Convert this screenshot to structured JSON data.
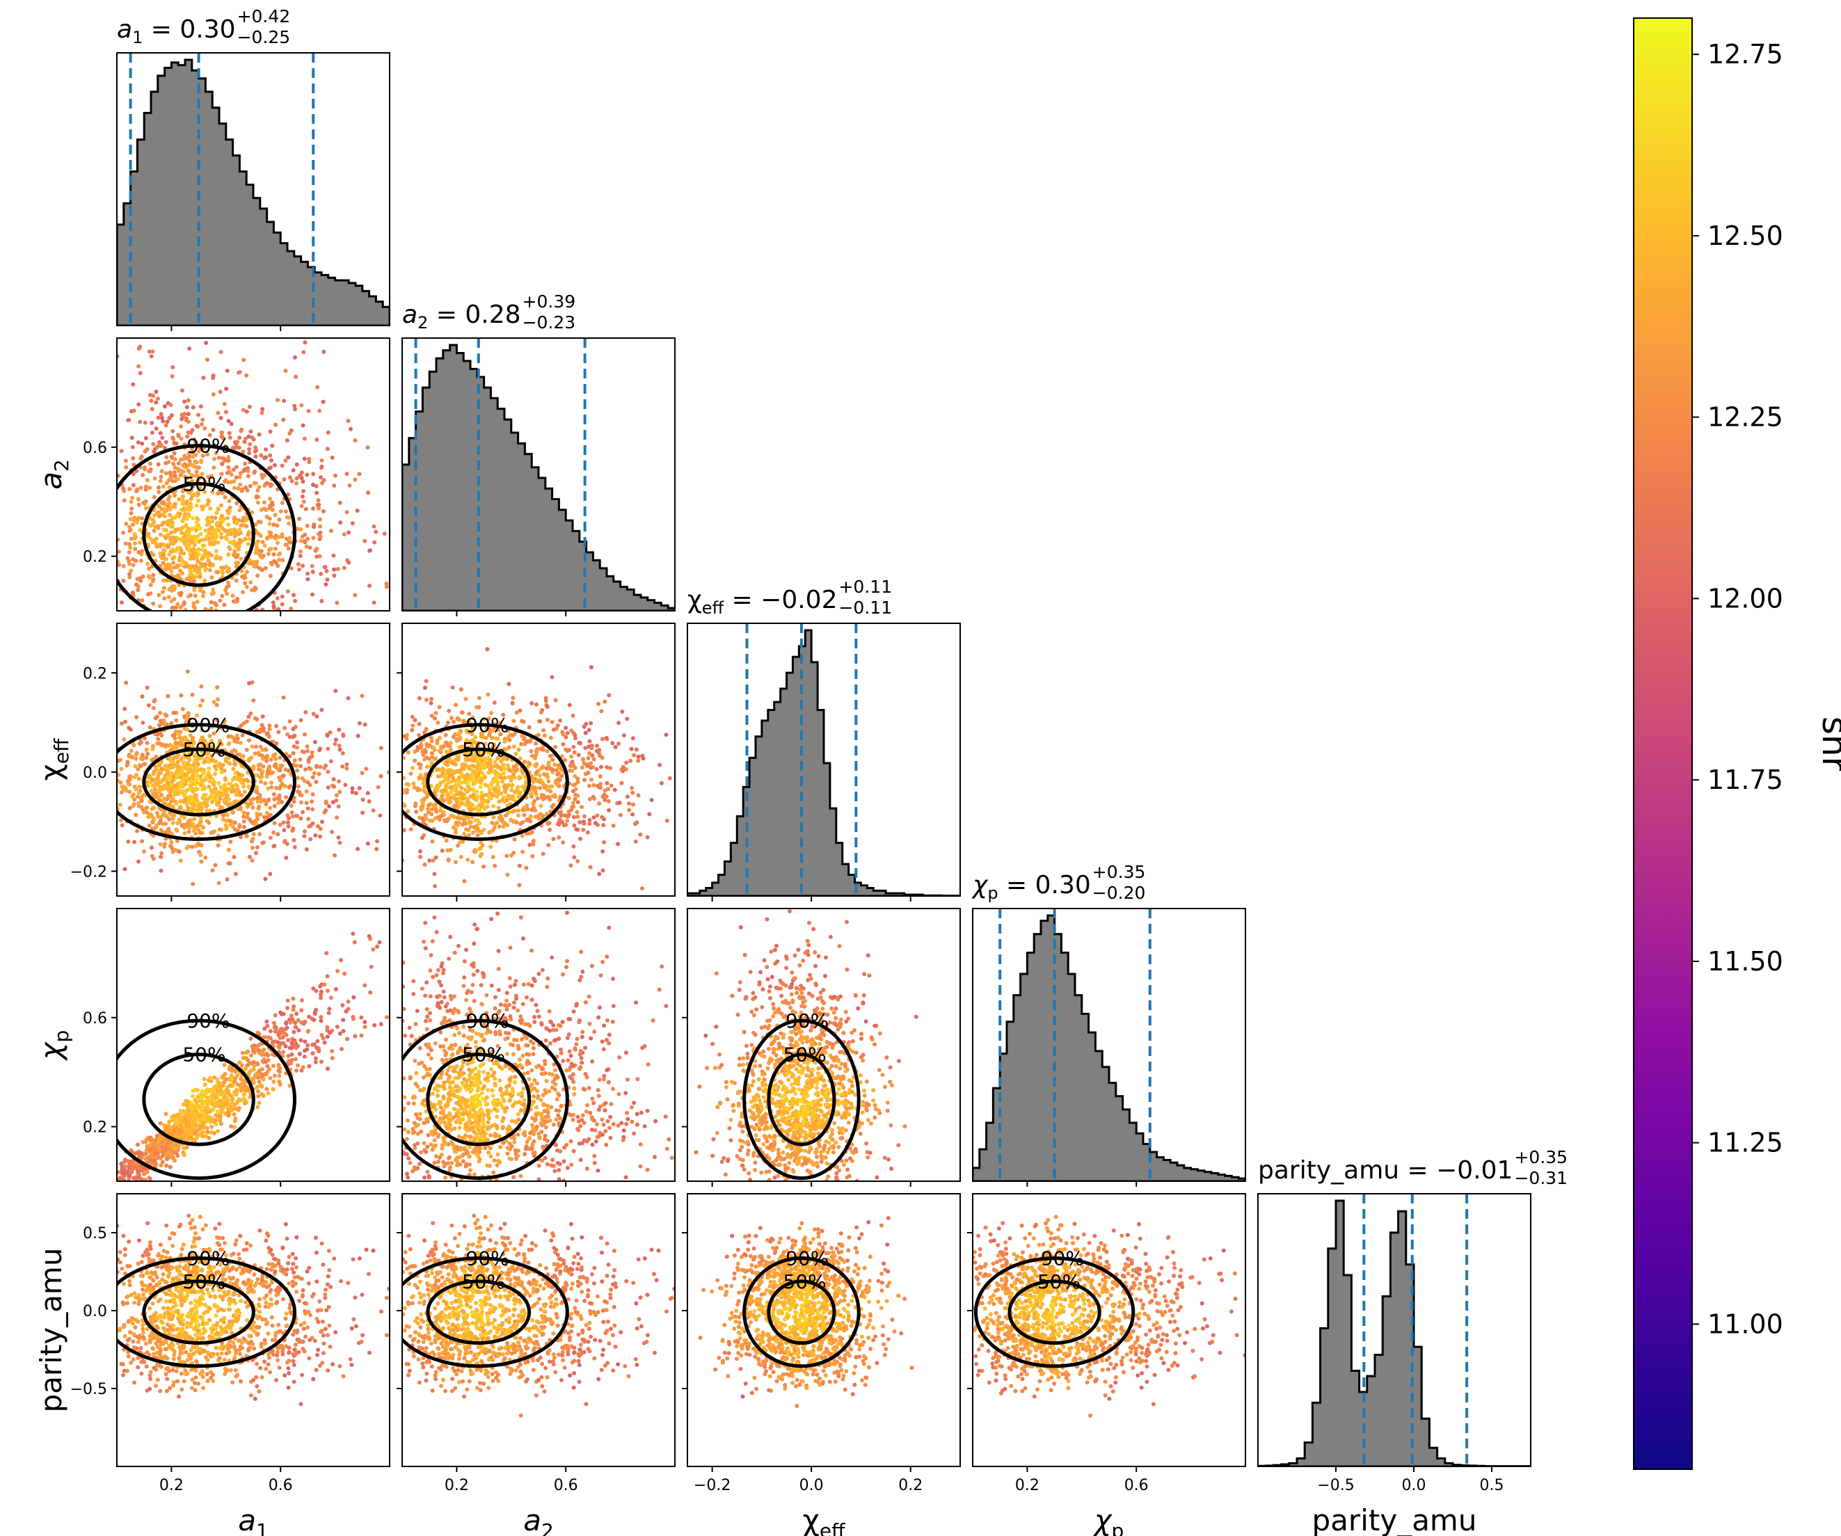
{
  "chart_data": {
    "type": "scatter",
    "kind": "corner plot",
    "parameters": [
      {
        "key": "a1",
        "label_base": "a",
        "label_sub": "1",
        "italic": true,
        "range": [
          0,
          1
        ],
        "ticks": [
          0.2,
          0.6
        ],
        "tick_labels": [
          "0.2",
          "0.6"
        ],
        "title": {
          "name": "a",
          "sub": "1",
          "value": "= 0.30",
          "plus": "+0.42",
          "minus": "−0.25"
        },
        "quantiles": [
          0.05,
          0.3,
          0.72
        ]
      },
      {
        "key": "a2",
        "label_base": "a",
        "label_sub": "2",
        "italic": true,
        "range": [
          0,
          1
        ],
        "ticks": [
          0.2,
          0.6
        ],
        "tick_labels": [
          "0.2",
          "0.6"
        ],
        "title": {
          "name": "a",
          "sub": "2",
          "value": "= 0.28",
          "plus": "+0.39",
          "minus": "−0.23"
        },
        "quantiles": [
          0.05,
          0.28,
          0.67
        ]
      },
      {
        "key": "chi_eff",
        "label_base": "χ",
        "label_sub": "eff",
        "italic": false,
        "range": [
          -0.25,
          0.3
        ],
        "ticks": [
          -0.2,
          0.0,
          0.2
        ],
        "tick_labels": [
          "−0.2",
          "0.0",
          "0.2"
        ],
        "title": {
          "name": "χ",
          "sub": "eff",
          "value": "= −0.02",
          "plus": "+0.11",
          "minus": "−0.11"
        },
        "quantiles": [
          -0.13,
          -0.02,
          0.09
        ]
      },
      {
        "key": "chi_p",
        "label_base": "χ",
        "label_sub": "p",
        "italic": true,
        "range": [
          0,
          1
        ],
        "ticks": [
          0.2,
          0.6
        ],
        "tick_labels": [
          "0.2",
          "0.6"
        ],
        "title": {
          "name": "χ",
          "sub": "p",
          "value": "= 0.30",
          "plus": "+0.35",
          "minus": "−0.20"
        },
        "quantiles": [
          0.1,
          0.3,
          0.65
        ]
      },
      {
        "key": "parity_amu",
        "label_base": "parity_amu",
        "label_sub": "",
        "italic": false,
        "range": [
          -1,
          0.75
        ],
        "ticks": [
          -0.5,
          0.0,
          0.5
        ],
        "tick_labels": [
          "−0.5",
          "0.0",
          "0.5"
        ],
        "title": {
          "name": "parity_amu",
          "sub": "",
          "value": "= −0.01",
          "plus": "+0.35",
          "minus": "−0.31"
        },
        "quantiles": [
          -0.32,
          -0.01,
          0.34
        ]
      }
    ],
    "histograms": [
      {
        "param": "a1",
        "bin_width": 0.025,
        "start": 0.0,
        "counts": [
          3.8,
          4.6,
          5.8,
          7.0,
          8.0,
          8.8,
          9.4,
          9.7,
          9.9,
          9.8,
          10.0,
          9.6,
          9.3,
          8.8,
          8.2,
          7.6,
          7.0,
          6.4,
          5.8,
          5.3,
          4.8,
          4.4,
          3.9,
          3.5,
          3.1,
          2.8,
          2.6,
          2.4,
          2.2,
          2.0,
          1.9,
          1.8,
          1.7,
          1.7,
          1.6,
          1.5,
          1.3,
          1.1,
          0.9,
          0.7
        ]
      },
      {
        "param": "a2",
        "bin_width": 0.025,
        "start": 0.0,
        "counts": [
          5.5,
          6.5,
          7.5,
          8.4,
          9.0,
          9.5,
          9.8,
          10.0,
          9.7,
          9.4,
          9.1,
          8.8,
          8.4,
          8.0,
          7.6,
          7.2,
          6.7,
          6.3,
          5.9,
          5.4,
          5.0,
          4.6,
          4.2,
          3.8,
          3.4,
          3.0,
          2.6,
          2.2,
          1.9,
          1.6,
          1.3,
          1.1,
          0.9,
          0.8,
          0.6,
          0.5,
          0.4,
          0.3,
          0.2,
          0.1
        ]
      },
      {
        "param": "chi_eff",
        "bin_width": 0.0125,
        "start": -0.25,
        "counts": [
          0.1,
          0.1,
          0.2,
          0.3,
          0.5,
          0.8,
          1.3,
          2.0,
          3.0,
          4.1,
          5.2,
          6.0,
          6.6,
          7.0,
          7.3,
          7.8,
          8.4,
          9.0,
          9.4,
          10.0,
          8.8,
          7.0,
          5.0,
          3.3,
          2.0,
          1.2,
          0.8,
          0.5,
          0.4,
          0.3,
          0.2,
          0.2,
          0.1,
          0.1,
          0.1,
          0.05,
          0.05,
          0.05,
          0.02,
          0.02,
          0.02,
          0.01,
          0.01,
          0.01
        ]
      },
      {
        "param": "chi_p",
        "bin_width": 0.025,
        "start": 0.0,
        "counts": [
          0.5,
          1.2,
          2.2,
          3.5,
          4.8,
          6.0,
          7.0,
          7.8,
          8.6,
          9.3,
          9.8,
          10.0,
          9.3,
          8.6,
          7.8,
          7.0,
          6.3,
          5.6,
          4.9,
          4.3,
          3.7,
          3.2,
          2.7,
          2.2,
          1.8,
          1.4,
          1.1,
          0.9,
          0.8,
          0.7,
          0.6,
          0.5,
          0.45,
          0.4,
          0.35,
          0.3,
          0.25,
          0.2,
          0.15,
          0.1
        ]
      },
      {
        "param": "parity_amu",
        "bin_width": 0.05,
        "start": -1.0,
        "counts": [
          0.02,
          0.03,
          0.05,
          0.08,
          0.12,
          0.3,
          0.9,
          2.4,
          5.2,
          8.2,
          10.0,
          7.2,
          3.6,
          2.8,
          3.4,
          4.2,
          6.4,
          8.8,
          9.6,
          7.6,
          4.5,
          1.8,
          0.7,
          0.3,
          0.12,
          0.06,
          0.04,
          0.03,
          0.02,
          0.01,
          0.01,
          0.01,
          0.01,
          0.01,
          0.01
        ]
      }
    ],
    "contour_levels": [
      "50%",
      "90%"
    ],
    "colorbar": {
      "label": "snr",
      "colormap": "plasma",
      "range": [
        10.8,
        12.8
      ],
      "ticks": [
        "11.00",
        "11.25",
        "11.50",
        "11.75",
        "12.00",
        "12.25",
        "12.50",
        "12.75"
      ]
    },
    "colors": {
      "hist_fill": "#808080",
      "hist_edge": "#000000",
      "quantile_line": "#1f77b4",
      "contour": "#000000"
    }
  }
}
